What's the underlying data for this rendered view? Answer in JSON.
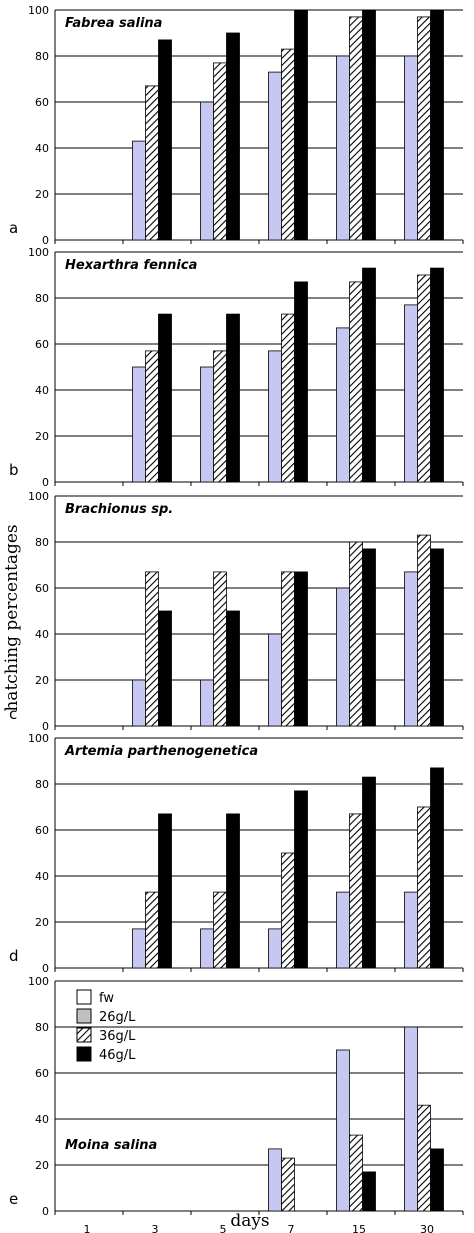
{
  "colors": {
    "fw": "#c6c8f2",
    "26g": "#c0c0c0",
    "36g": "hatch",
    "46g": "#000000",
    "grid": "#000000"
  },
  "chart_data": {
    "type": "bar",
    "categories": [
      "1",
      "3",
      "5",
      "7",
      "15",
      "30"
    ],
    "xlabel": "days",
    "ylabel": "hatching percentages",
    "ylim": [
      0,
      100
    ],
    "yticks": [
      "0",
      "20",
      "40",
      "60",
      "80",
      "100"
    ],
    "grid": true,
    "legend": {
      "placement": "top-left of panel e",
      "entries": [
        "fw",
        "26g/L",
        "36g/L",
        "46g/L"
      ]
    },
    "panels": [
      {
        "letter": "a",
        "title": "Fabrea salina",
        "series": [
          {
            "name": "fw",
            "values": [
              0,
              43,
              60,
              73,
              80,
              80
            ]
          },
          {
            "name": "36g/L",
            "values": [
              0,
              67,
              77,
              83,
              97,
              97
            ]
          },
          {
            "name": "46g/L",
            "values": [
              0,
              87,
              90,
              100,
              100,
              100
            ]
          }
        ]
      },
      {
        "letter": "b",
        "title": "Hexarthra fennica",
        "series": [
          {
            "name": "fw",
            "values": [
              0,
              50,
              50,
              57,
              67,
              77
            ]
          },
          {
            "name": "36g/L",
            "values": [
              0,
              57,
              57,
              73,
              87,
              90
            ]
          },
          {
            "name": "46g/L",
            "values": [
              0,
              73,
              73,
              87,
              93,
              93
            ]
          }
        ]
      },
      {
        "letter": "c",
        "title": "Brachionus sp.",
        "series": [
          {
            "name": "fw",
            "values": [
              0,
              20,
              20,
              40,
              60,
              67
            ]
          },
          {
            "name": "36g/L",
            "values": [
              0,
              67,
              67,
              67,
              80,
              83
            ]
          },
          {
            "name": "46g/L",
            "values": [
              0,
              50,
              50,
              67,
              77,
              77
            ]
          }
        ]
      },
      {
        "letter": "d",
        "title": "Artemia parthenogenetica",
        "series": [
          {
            "name": "fw",
            "values": [
              0,
              17,
              17,
              17,
              33,
              33
            ]
          },
          {
            "name": "36g/L",
            "values": [
              0,
              33,
              33,
              50,
              67,
              70
            ]
          },
          {
            "name": "46g/L",
            "values": [
              0,
              67,
              67,
              77,
              83,
              87
            ]
          }
        ]
      },
      {
        "letter": "e",
        "title": "Moina salina",
        "series": [
          {
            "name": "fw",
            "values": [
              0,
              0,
              0,
              27,
              70,
              80
            ]
          },
          {
            "name": "36g/L",
            "values": [
              0,
              0,
              0,
              23,
              33,
              46
            ]
          },
          {
            "name": "46g/L",
            "values": [
              0,
              0,
              0,
              0,
              17,
              27
            ]
          }
        ]
      }
    ]
  }
}
